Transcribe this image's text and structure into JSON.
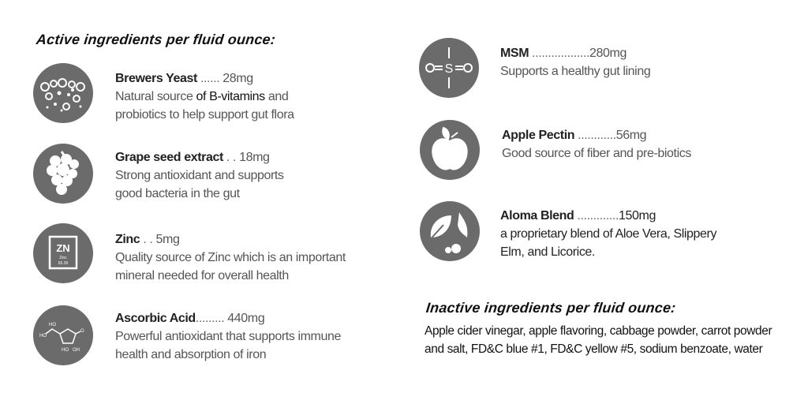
{
  "active": {
    "heading": "Active ingredients per fluid ounce:",
    "items": [
      {
        "icon": "bubbles-icon",
        "name": "Brewers Yeast",
        "dots": " ......",
        "amount": "28mg",
        "desc_a": "Natural source ",
        "desc_b": "of B-vitamins",
        "desc_c": " and",
        "desc2": "probiotics to help support gut flora"
      },
      {
        "icon": "grapes-icon",
        "name": "Grape seed extract",
        "dots": " . .",
        "amount": "18mg",
        "desc": "Strong antioxidant and supports",
        "desc2": "good bacteria in the gut"
      },
      {
        "icon": "zinc-element-icon",
        "name": "Zinc",
        "dots": " . .",
        "amount": "5mg",
        "desc": "Quality source of Zinc which is an important",
        "desc2": "mineral needed for overall health",
        "icon_text": {
          "symbol": "ZN",
          "label": "Zinc",
          "mass": "65.39"
        }
      },
      {
        "icon": "ascorbic-molecule-icon",
        "name": "Ascorbic Acid",
        "dots": ".........",
        "amount": "440mg",
        "desc": "Powerful antioxidant that supports immune",
        "desc2": "health and absorption of iron"
      },
      {
        "icon": "msm-molecule-icon",
        "name": "MSM",
        "dots": " ..................",
        "amount": "280mg",
        "desc": "Supports a healthy gut lining"
      },
      {
        "icon": "apple-icon",
        "name": "Apple Pectin",
        "dots": " ............",
        "amount": "56mg",
        "desc": "Good source of fiber and pre-biotics"
      },
      {
        "icon": "herbs-leaf-icon",
        "name": "Aloma Blend",
        "dots": " .............",
        "amount": "150mg",
        "desc": "a proprietary blend of Aloe Vera, Slippery",
        "desc2": "Elm, and Licorice."
      }
    ]
  },
  "inactive": {
    "heading": "Inactive ingredients per fluid ounce:",
    "line1": "Apple cider vinegar, apple flavoring, cabbage powder, carrot powder",
    "line2": "and salt, FD&C blue #1, FD&C yellow #5, sodium benzoate, water"
  },
  "colors": {
    "icon_bg": "#6b6b6b",
    "name": "#222222",
    "desc": "#555555"
  }
}
